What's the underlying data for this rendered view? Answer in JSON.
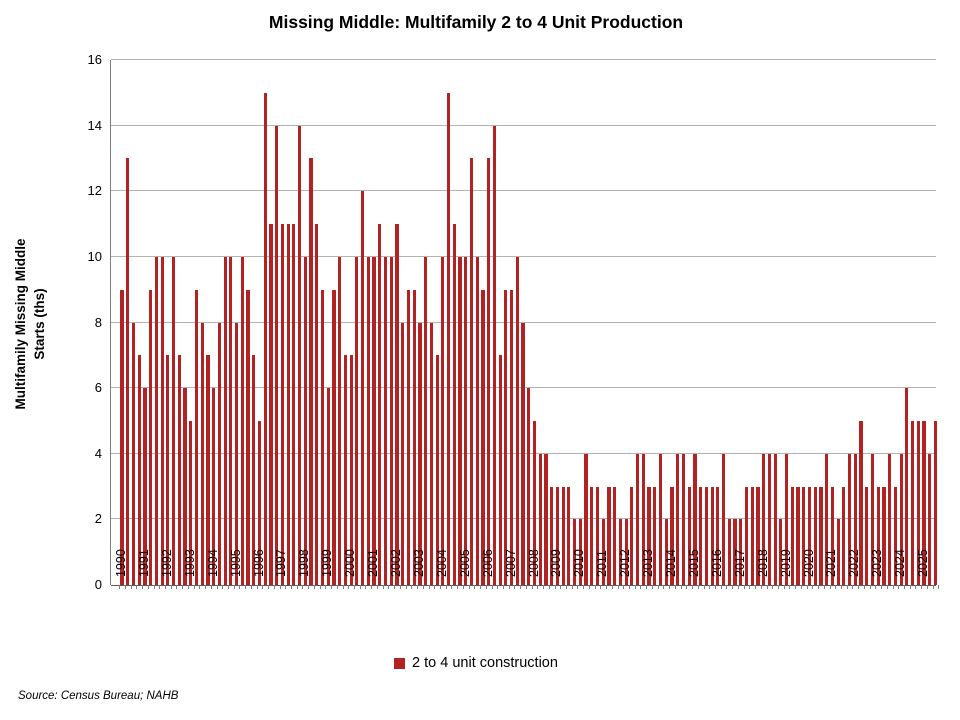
{
  "chart_data": {
    "type": "bar",
    "title": "Missing Middle: Multifamily 2 to 4 Unit Production",
    "ylabel_line1": "Multifamily Missing Middle",
    "ylabel_line2": "Starts (ths)",
    "ylim": [
      0,
      16
    ],
    "ytick_step": 2,
    "grid": "horizontal",
    "legend_position": "bottom-center",
    "bar_color": "#B22222",
    "gridline_color": "#b3b3b3",
    "series_name": "2 to 4 unit construction",
    "x_start": "1990Q1",
    "x_end": "2025Q3",
    "data": [
      {
        "year": 1990,
        "q": [
          9,
          13,
          8,
          7
        ]
      },
      {
        "year": 1991,
        "q": [
          6,
          9,
          10,
          10
        ]
      },
      {
        "year": 1992,
        "q": [
          7,
          10,
          7,
          6
        ]
      },
      {
        "year": 1993,
        "q": [
          5,
          9,
          8,
          7
        ]
      },
      {
        "year": 1994,
        "q": [
          6,
          8,
          10,
          10
        ]
      },
      {
        "year": 1995,
        "q": [
          8,
          10,
          9,
          7
        ]
      },
      {
        "year": 1996,
        "q": [
          5,
          15,
          11,
          14
        ]
      },
      {
        "year": 1997,
        "q": [
          11,
          11,
          11,
          14
        ]
      },
      {
        "year": 1998,
        "q": [
          10,
          13,
          11,
          9
        ]
      },
      {
        "year": 1999,
        "q": [
          6,
          9,
          10,
          7
        ]
      },
      {
        "year": 2000,
        "q": [
          7,
          10,
          12,
          10
        ]
      },
      {
        "year": 2001,
        "q": [
          10,
          11,
          10,
          10
        ]
      },
      {
        "year": 2002,
        "q": [
          11,
          8,
          9,
          9
        ]
      },
      {
        "year": 2003,
        "q": [
          8,
          10,
          8,
          7
        ]
      },
      {
        "year": 2004,
        "q": [
          10,
          15,
          11,
          10
        ]
      },
      {
        "year": 2005,
        "q": [
          10,
          13,
          10,
          9
        ]
      },
      {
        "year": 2006,
        "q": [
          13,
          14,
          7,
          9
        ]
      },
      {
        "year": 2007,
        "q": [
          9,
          10,
          8,
          6
        ]
      },
      {
        "year": 2008,
        "q": [
          5,
          4,
          4,
          3
        ]
      },
      {
        "year": 2009,
        "q": [
          3,
          3,
          3,
          2
        ]
      },
      {
        "year": 2010,
        "q": [
          2,
          4,
          3,
          3
        ]
      },
      {
        "year": 2011,
        "q": [
          2,
          3,
          3,
          2
        ]
      },
      {
        "year": 2012,
        "q": [
          2,
          3,
          4,
          4
        ]
      },
      {
        "year": 2013,
        "q": [
          3,
          3,
          4,
          2
        ]
      },
      {
        "year": 2014,
        "q": [
          3,
          4,
          4,
          3
        ]
      },
      {
        "year": 2015,
        "q": [
          4,
          3,
          3,
          3
        ]
      },
      {
        "year": 2016,
        "q": [
          3,
          4,
          2,
          2
        ]
      },
      {
        "year": 2017,
        "q": [
          2,
          3,
          3,
          3
        ]
      },
      {
        "year": 2018,
        "q": [
          4,
          4,
          4,
          2
        ]
      },
      {
        "year": 2019,
        "q": [
          4,
          3,
          3,
          3
        ]
      },
      {
        "year": 2020,
        "q": [
          3,
          3,
          3,
          4
        ]
      },
      {
        "year": 2021,
        "q": [
          3,
          2,
          3,
          4
        ]
      },
      {
        "year": 2022,
        "q": [
          4,
          5,
          3,
          4
        ]
      },
      {
        "year": 2023,
        "q": [
          3,
          3,
          4,
          3
        ]
      },
      {
        "year": 2024,
        "q": [
          4,
          6,
          5,
          5
        ]
      },
      {
        "year": 2025,
        "q": [
          5,
          4,
          5
        ]
      }
    ]
  },
  "legend": {
    "label": "2 to 4 unit construction"
  },
  "source": {
    "text": "Source: Census Bureau; NAHB"
  }
}
